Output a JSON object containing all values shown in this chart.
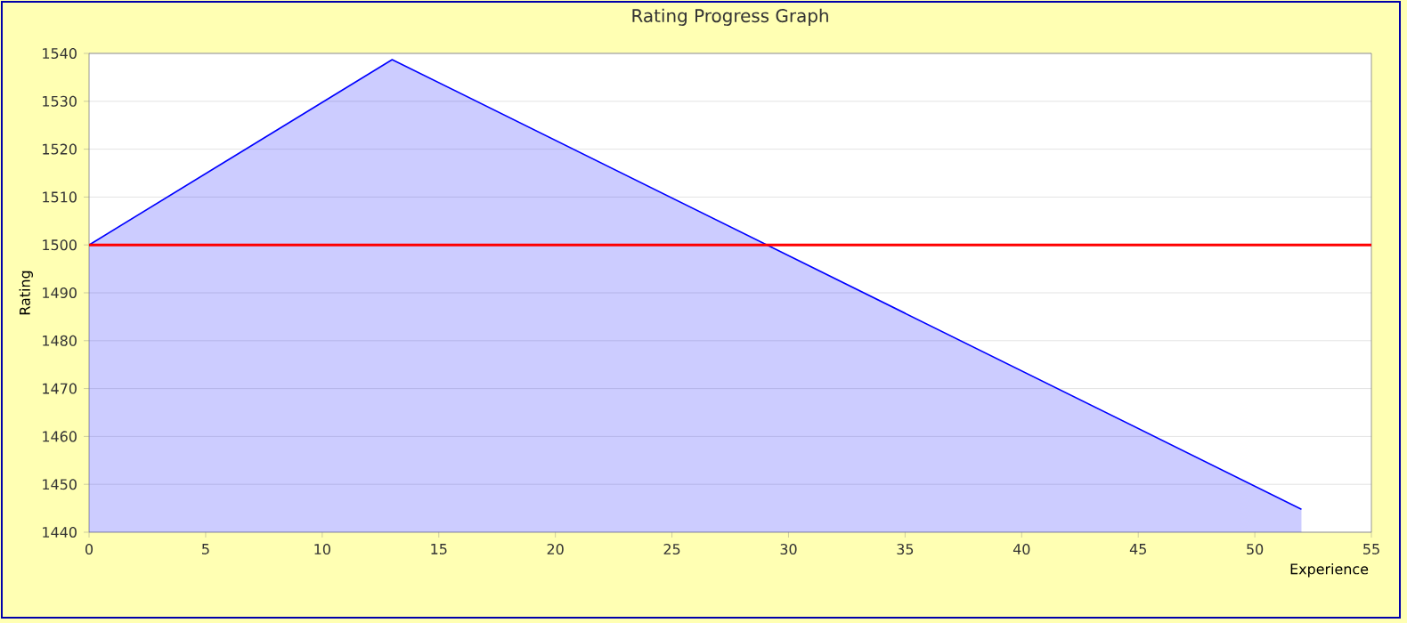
{
  "chart_data": {
    "type": "area",
    "title": "Rating Progress Graph",
    "xlabel": "Experience",
    "ylabel": "Rating",
    "x": [
      0,
      13,
      52
    ],
    "series": [
      {
        "color": "#0000ff",
        "values": [
          1500,
          1538.7,
          1444.8
        ]
      }
    ],
    "xlim": [
      0,
      55
    ],
    "xticks": [
      0,
      5,
      10,
      15,
      20,
      25,
      30,
      35,
      40,
      45,
      50,
      55
    ],
    "ylim": [
      1440,
      1540
    ],
    "yticks": [
      1440,
      1450,
      1460,
      1470,
      1480,
      1490,
      1500,
      1510,
      1520,
      1530,
      1540
    ],
    "ref_lines": [
      {
        "axis": "y",
        "value": 1500,
        "color": "#ff0000"
      }
    ],
    "grid": "y"
  }
}
